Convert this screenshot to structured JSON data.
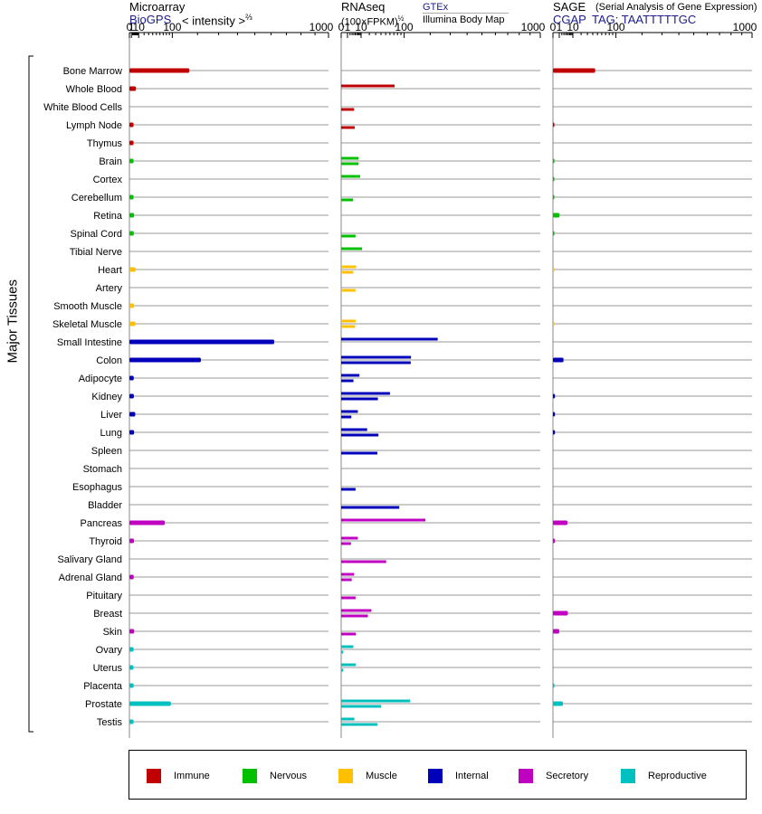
{
  "headers": {
    "microarray": {
      "title": "Microarray",
      "source": "BioGPS",
      "metric": "< intensity >",
      "exponent": "⅔"
    },
    "rnaseq": {
      "title": "RNAseq",
      "metric": "(100×FPKM)",
      "exponent": "½",
      "source1": "GTEx",
      "source2": "Illumina Body Map"
    },
    "sage": {
      "title": "SAGE",
      "subtitle": "(Serial Analysis of Gene Expression)",
      "source": "CGAP",
      "tag": "TAG: TAATTTTTGC"
    }
  },
  "y_axis_title": "Major Tissues",
  "chart_data": {
    "type": "bar",
    "orientation": "horizontal",
    "x_scale": "power",
    "x_ticks": [
      "0",
      "1",
      "10",
      "100",
      "1000"
    ],
    "x_range": [
      0,
      1000
    ],
    "categories": [
      "Bone Marrow",
      "Whole Blood",
      "White Blood Cells",
      "Lymph Node",
      "Thymus",
      "Brain",
      "Cortex",
      "Cerebellum",
      "Retina",
      "Spinal Cord",
      "Tibial Nerve",
      "Heart",
      "Artery",
      "Smooth Muscle",
      "Skeletal Muscle",
      "Small Intestine",
      "Colon",
      "Adipocyte",
      "Kidney",
      "Liver",
      "Lung",
      "Spleen",
      "Stomach",
      "Esophagus",
      "Bladder",
      "Pancreas",
      "Thyroid",
      "Salivary Gland",
      "Adrenal Gland",
      "Pituitary",
      "Breast",
      "Skin",
      "Ovary",
      "Uterus",
      "Placenta",
      "Prostate",
      "Testis"
    ],
    "groups": [
      "Immune",
      "Immune",
      "Immune",
      "Immune",
      "Immune",
      "Nervous",
      "Nervous",
      "Nervous",
      "Nervous",
      "Nervous",
      "Nervous",
      "Muscle",
      "Muscle",
      "Muscle",
      "Muscle",
      "Internal",
      "Internal",
      "Internal",
      "Internal",
      "Internal",
      "Internal",
      "Internal",
      "Internal",
      "Internal",
      "Internal",
      "Secretory",
      "Secretory",
      "Secretory",
      "Secretory",
      "Secretory",
      "Secretory",
      "Secretory",
      "Reproductive",
      "Reproductive",
      "Reproductive",
      "Reproductive",
      "Reproductive"
    ],
    "panels": [
      {
        "name": "Microarray",
        "values": [
          165,
          6,
          null,
          3,
          3,
          3,
          null,
          3,
          3.6,
          3.3,
          null,
          5.5,
          null,
          3.6,
          5.2,
          620,
          215,
          3.2,
          3.3,
          5,
          3.6,
          null,
          null,
          null,
          null,
          75,
          3.5,
          null,
          3.2,
          null,
          null,
          3.7,
          3,
          2.9,
          3.1,
          95,
          3
        ]
      },
      {
        "name": "RNAseq GTEx",
        "values": [
          null,
          72,
          null,
          null,
          null,
          7.7,
          9,
          null,
          null,
          null,
          11,
          5.7,
          null,
          null,
          5.4,
          235,
          123,
          8.4,
          60,
          7,
          17,
          null,
          null,
          null,
          null,
          179,
          7,
          null,
          4.2,
          null,
          23,
          null,
          3.7,
          5.3,
          null,
          120,
          4.4
        ]
      },
      {
        "name": "RNAseq Illumina Body Map",
        "values": [
          null,
          null,
          4.2,
          4.6,
          null,
          7.6,
          null,
          3.6,
          null,
          5.2,
          null,
          3.7,
          5.2,
          null,
          4.9,
          null,
          122,
          3.8,
          34,
          2.6,
          35,
          33,
          null,
          5.2,
          85,
          null,
          2.4,
          51,
          2.8,
          5.2,
          18,
          5.4,
          0.1,
          0.1,
          null,
          40,
          33
        ]
      },
      {
        "name": "SAGE",
        "values": [
          45,
          null,
          null,
          0.05,
          null,
          0.05,
          0.04,
          0.04,
          1.1,
          0.05,
          null,
          0.02,
          null,
          null,
          0.02,
          null,
          2.8,
          null,
          0.1,
          0.1,
          0.1,
          null,
          null,
          null,
          null,
          5.3,
          0.1,
          null,
          null,
          null,
          5.6,
          1,
          null,
          null,
          0.05,
          2.5,
          null
        ]
      }
    ],
    "grid": true,
    "legend_position": "bottom"
  },
  "legend": [
    {
      "label": "Immune",
      "color": "#c00000"
    },
    {
      "label": "Nervous",
      "color": "#00c000"
    },
    {
      "label": "Muscle",
      "color": "#ffc000"
    },
    {
      "label": "Internal",
      "color": "#0000bb"
    },
    {
      "label": "Secretory",
      "color": "#c000c0"
    },
    {
      "label": "Reproductive",
      "color": "#00c0c0"
    }
  ]
}
